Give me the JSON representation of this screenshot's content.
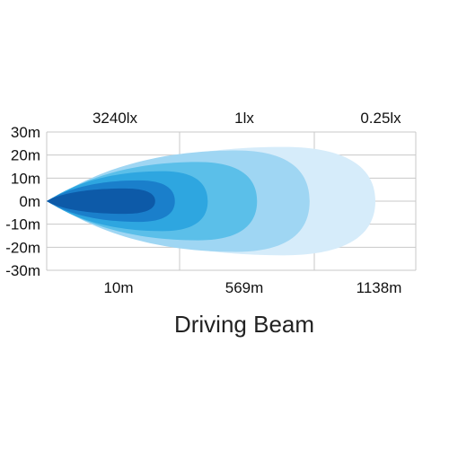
{
  "chart_data": {
    "type": "area",
    "title": "Driving Beam",
    "y_ticks": [
      "30m",
      "20m",
      "10m",
      "0m",
      "-10m",
      "-20m",
      "-30m"
    ],
    "y_values": [
      30,
      20,
      10,
      0,
      -10,
      -20,
      -30
    ],
    "ylim": [
      -30,
      30
    ],
    "top_labels": [
      "3240lx",
      "1lx",
      "0.25lx"
    ],
    "bottom_labels": [
      "10m",
      "569m",
      "1138m"
    ],
    "grid": true,
    "contours": [
      {
        "name": "",
        "color": "#d6ecfa",
        "reach": 1.0,
        "half_width": 23.5
      },
      {
        "name": "",
        "color": "#9fd6f3",
        "reach": 0.8,
        "half_width": 22
      },
      {
        "name": "",
        "color": "#5bbfe9",
        "reach": 0.64,
        "half_width": 17
      },
      {
        "name": "",
        "color": "#2ea6e0",
        "reach": 0.49,
        "half_width": 13
      },
      {
        "name": "",
        "color": "#1a7fcb",
        "reach": 0.39,
        "half_width": 9
      },
      {
        "name": "",
        "color": "#0d5aa8",
        "reach": 0.33,
        "half_width": 5.5
      }
    ]
  }
}
